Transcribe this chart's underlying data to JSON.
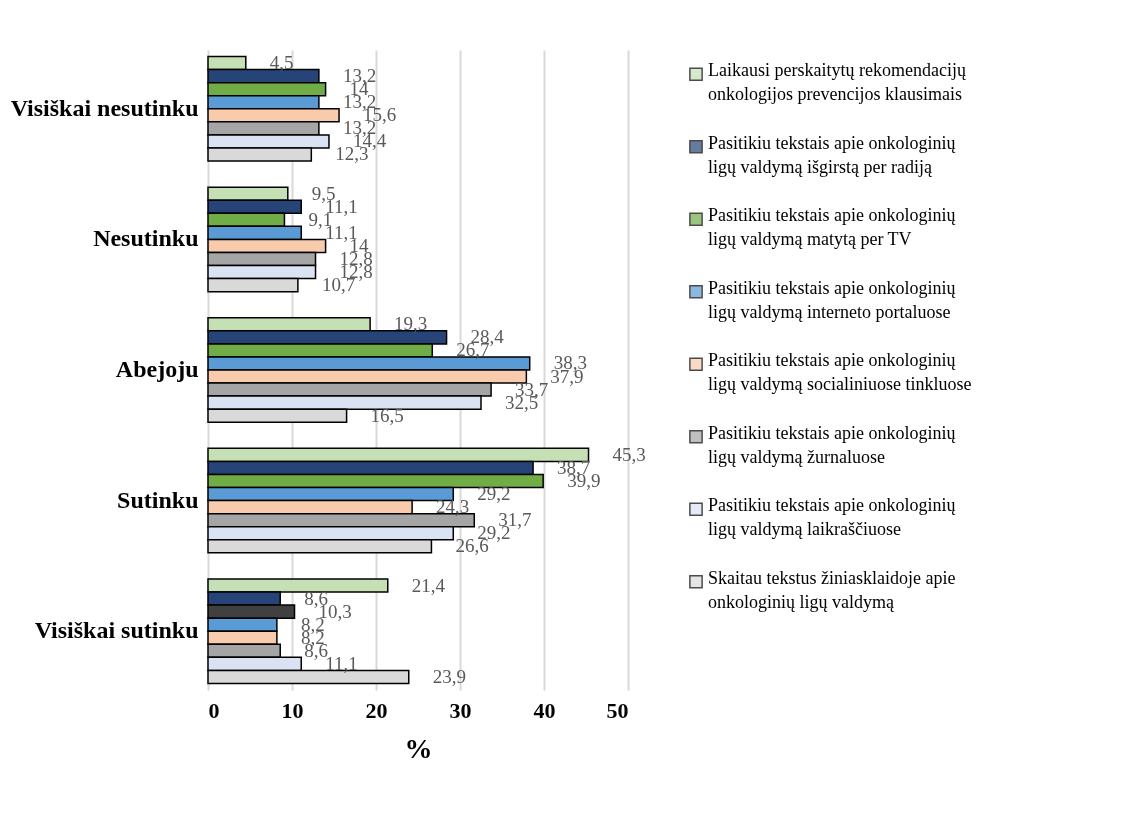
{
  "chart_data": {
    "type": "bar",
    "orientation": "horizontal",
    "xlabel": "%",
    "categories": [
      "Visiškai nesutinku",
      "Nesutinku",
      "Abejoju",
      "Sutinku",
      "Visiškai sutinku"
    ],
    "series": [
      {
        "name": "Laikausi perskaitytų rekomendacijų onkologijos prevencijos klausimais",
        "color": "#c5e0b4",
        "values": [
          4.5,
          9.5,
          19.3,
          45.3,
          21.4
        ],
        "value_labels": [
          "4,5",
          "9,5",
          "19,3",
          "45,3",
          "21,4"
        ]
      },
      {
        "name": "Pasitikiu tekstais apie onkologinių ligų valdymą išgirstą per radiją",
        "color": "#264478",
        "values": [
          13.2,
          11.1,
          28.4,
          38.7,
          8.6
        ],
        "value_labels": [
          "13,2",
          "11,1",
          "28,4",
          "38,7",
          "8,6"
        ]
      },
      {
        "name": "Pasitikiu tekstais apie onkologinių ligų valdymą matytą per TV",
        "color": "#70ad47",
        "colors": [
          "#70ad47",
          "#70ad47",
          "#70ad47",
          "#70ad47",
          "#404040"
        ],
        "values": [
          14,
          9.1,
          26.7,
          39.9,
          10.3
        ],
        "value_labels": [
          "14",
          "9,1",
          "26,7",
          "39,9",
          "10,3"
        ]
      },
      {
        "name": "Pasitikiu tekstais apie onkologinių ligų valdymą interneto portaluose",
        "color": "#5b9bd5",
        "values": [
          13.2,
          11.1,
          38.3,
          29.2,
          8.2
        ],
        "value_labels": [
          "13,2",
          "11,1",
          "38,3",
          "29,2",
          "8,2"
        ]
      },
      {
        "name": "Pasitikiu tekstais apie onkologinių ligų valdymą socialiniuose tinkluose",
        "color": "#f8cbad",
        "values": [
          15.6,
          14,
          37.9,
          24.3,
          8.2
        ],
        "value_labels": [
          "15,6",
          "14",
          "37,9",
          "24,3",
          "8,2"
        ]
      },
      {
        "name": "Pasitikiu tekstais apie onkologinių ligų valdymą žurnaluose",
        "color": "#a5a5a5",
        "values": [
          13.2,
          12.8,
          33.7,
          31.7,
          8.6
        ],
        "value_labels": [
          "13,2",
          "12,8",
          "33,7",
          "31,7",
          "8,6"
        ]
      },
      {
        "name": "Pasitikiu tekstais apie onkologinių ligų valdymą laikraščiuose",
        "color": "#dae3f3",
        "values": [
          14.4,
          12.8,
          32.5,
          29.2,
          11.1
        ],
        "value_labels": [
          "14,4",
          "12,8",
          "32,5",
          "29,2",
          "11,1"
        ]
      },
      {
        "name": "Skaitau tekstus žiniasklaidoje apie onkologinių ligų valdymą",
        "color": "#d9d9d9",
        "values": [
          12.3,
          10.7,
          16.5,
          26.6,
          23.9
        ],
        "value_labels": [
          "12,3",
          "10,7",
          "16,5",
          "26,6",
          "23,9"
        ]
      }
    ],
    "xlim": [
      0,
      50
    ],
    "xticks": [
      0,
      10,
      20,
      30,
      40,
      50
    ],
    "grid": "x",
    "legend": "right"
  }
}
